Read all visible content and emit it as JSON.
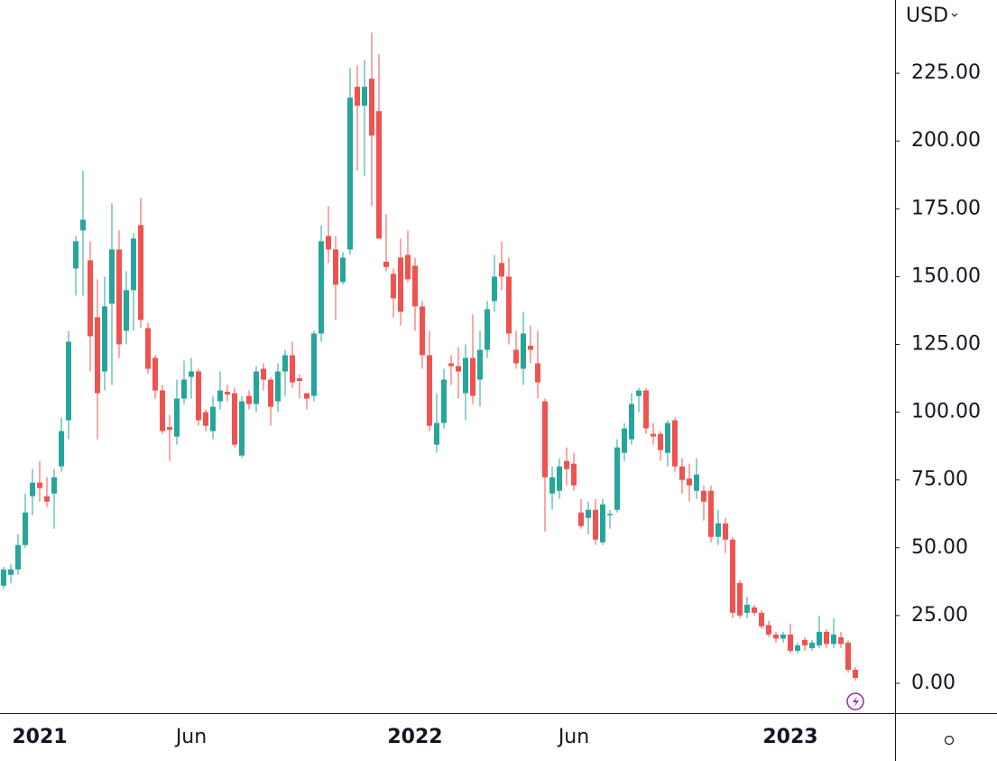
{
  "chart_data": {
    "type": "candlestick",
    "currency": "USD",
    "categories": [
      null,
      null,
      null,
      null,
      null,
      "2021",
      null,
      null,
      null,
      null,
      null,
      null,
      null,
      null,
      null,
      null,
      null,
      null,
      null,
      null,
      null,
      null,
      null,
      null,
      null,
      null,
      "Jun",
      null,
      null,
      null,
      null,
      null,
      null,
      null,
      null,
      null,
      null,
      null,
      null,
      null,
      null,
      null,
      null,
      null,
      null,
      null,
      null,
      null,
      null,
      null,
      null,
      null,
      null,
      null,
      null,
      null,
      null,
      "2022",
      null,
      null,
      null,
      null,
      null,
      null,
      null,
      null,
      null,
      null,
      null,
      null,
      null,
      null,
      null,
      null,
      null,
      null,
      null,
      null,
      null,
      "Jun",
      null,
      null,
      null,
      null,
      null,
      null,
      null,
      null,
      null,
      null,
      null,
      null,
      null,
      null,
      null,
      null,
      null,
      null,
      null,
      null,
      null,
      null,
      null,
      null,
      null,
      null,
      null,
      null,
      null,
      "2023",
      null,
      null,
      null,
      null,
      null,
      null,
      null,
      null,
      null
    ],
    "open": [
      36,
      40,
      42,
      51,
      69,
      74,
      69,
      70,
      80,
      97,
      153,
      167,
      156,
      135,
      115,
      140,
      160,
      130,
      145,
      169,
      131,
      120,
      108,
      94.5,
      91,
      105,
      113,
      115,
      100,
      93,
      104,
      107.5,
      107,
      84,
      106,
      103,
      116,
      112,
      104,
      115,
      121,
      112.5,
      107,
      106,
      129,
      165,
      160,
      148,
      160,
      220,
      213,
      223,
      211,
      155.5,
      151,
      157,
      158,
      154,
      139,
      121,
      88,
      96,
      118,
      117,
      107,
      120,
      112,
      123,
      141,
      155,
      150,
      123,
      116,
      124.5,
      118,
      104,
      70,
      71,
      82,
      81,
      63,
      61,
      64,
      52,
      62,
      64,
      85,
      90,
      106,
      108,
      92,
      92,
      85,
      97,
      80,
      75.5,
      71,
      71,
      71,
      54,
      59,
      53,
      37,
      26,
      28,
      26,
      21.5,
      18,
      16.5,
      18,
      12,
      16,
      13,
      14,
      19,
      14.5,
      17,
      15,
      5
    ],
    "high": [
      43,
      44,
      55,
      70,
      79,
      82,
      76,
      79,
      98,
      130,
      165,
      189,
      163,
      149,
      150,
      177,
      167,
      152,
      166,
      179,
      133,
      121,
      110,
      99,
      112,
      119,
      120,
      116,
      101,
      106,
      115,
      110,
      109,
      106,
      108,
      117,
      118,
      113,
      118,
      123,
      126,
      114,
      107,
      130,
      169,
      176,
      165,
      159,
      227,
      228,
      230,
      240,
      232,
      173,
      153,
      164,
      167,
      157,
      141,
      130,
      107,
      116,
      121,
      124,
      125,
      136,
      130,
      141,
      158,
      163,
      157,
      130,
      137,
      132,
      130,
      105,
      80,
      83,
      87,
      85,
      68,
      67,
      68,
      68,
      64,
      90,
      96,
      107,
      109,
      109,
      96,
      93,
      97,
      98,
      83,
      81,
      83,
      73,
      73,
      64,
      61,
      54,
      38,
      32,
      29,
      27,
      23,
      19,
      19,
      22,
      15,
      17,
      16,
      25,
      20,
      24,
      19,
      16,
      6
    ],
    "low": [
      35,
      37,
      40,
      50,
      62,
      67,
      65,
      57,
      78,
      90,
      143,
      143,
      115,
      90,
      108,
      110,
      120,
      125,
      130,
      131,
      114,
      105,
      92,
      82,
      88,
      103,
      105,
      95,
      93,
      90,
      101,
      104,
      87,
      83,
      101,
      100,
      108,
      95,
      100,
      106,
      109,
      105,
      101,
      104,
      126,
      155,
      134,
      147,
      158,
      189,
      187,
      176,
      164,
      152,
      135,
      132,
      148,
      130,
      116,
      93,
      85,
      94,
      110,
      105,
      97,
      103,
      102,
      120,
      137,
      145,
      125,
      116,
      110,
      118,
      105,
      56,
      64,
      68,
      73,
      71,
      57,
      55,
      51,
      51,
      57,
      63,
      82,
      88,
      100,
      92,
      88,
      82,
      80,
      78,
      70,
      67,
      68,
      60,
      52,
      51,
      48,
      24,
      24,
      24,
      25,
      20,
      17,
      15,
      15,
      11,
      11,
      12,
      12,
      13,
      13,
      13,
      13,
      4,
      1
    ],
    "close": [
      42,
      42,
      51,
      63,
      74,
      72,
      67,
      76,
      93,
      126,
      163,
      171,
      128,
      107,
      139,
      160,
      125,
      145,
      164,
      134,
      116,
      108,
      93,
      93.5,
      105,
      112,
      115,
      97,
      95,
      102,
      108,
      106.5,
      88,
      104,
      103,
      115,
      112,
      102,
      115,
      121,
      111,
      111.5,
      105,
      129,
      163,
      160,
      147,
      157,
      216,
      213,
      220,
      202,
      164,
      153.5,
      142,
      137,
      149,
      139,
      121,
      95,
      96,
      112,
      117,
      115,
      120,
      106,
      123,
      138,
      150,
      150,
      129,
      118,
      129,
      123,
      111,
      76,
      76,
      80,
      79,
      73,
      58,
      64,
      53,
      66,
      62.5,
      87,
      94,
      103,
      108,
      94,
      91,
      86,
      96,
      80,
      75,
      73,
      77,
      67,
      54,
      59,
      53,
      26,
      25,
      29,
      26,
      21,
      18,
      16.5,
      18,
      12,
      14,
      14,
      15,
      19,
      14.5,
      18,
      14.5,
      5,
      2
    ],
    "up_color": "#26a69a",
    "down_color": "#ef5350",
    "ylim": [
      -11,
      252
    ],
    "yticks": [
      {
        "value": 0,
        "label": "0.00"
      },
      {
        "value": 25,
        "label": "25.00"
      },
      {
        "value": 50,
        "label": "50.00"
      },
      {
        "value": 75,
        "label": "75.00"
      },
      {
        "value": 100,
        "label": "100.00"
      },
      {
        "value": 125,
        "label": "125.00"
      },
      {
        "value": 150,
        "label": "150.00"
      },
      {
        "value": 175,
        "label": "175.00"
      },
      {
        "value": 200,
        "label": "200.00"
      },
      {
        "value": 225,
        "label": "225.00"
      }
    ]
  }
}
